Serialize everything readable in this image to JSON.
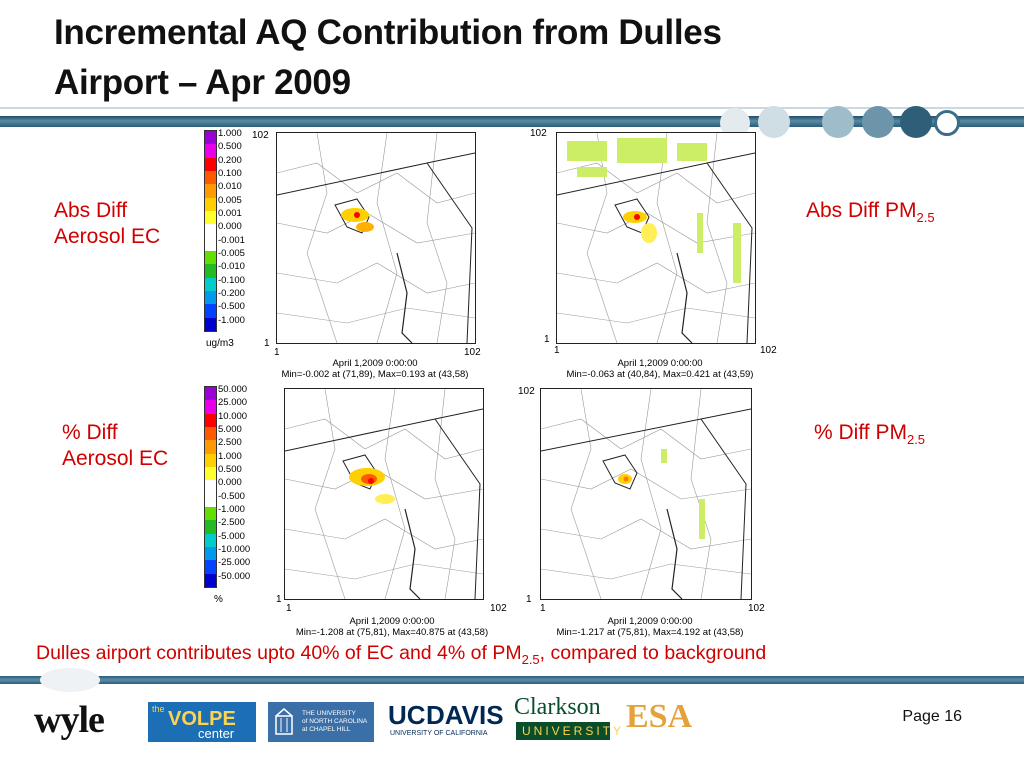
{
  "slide": {
    "title_line1": "Incremental AQ Contribution from Dulles",
    "title_line2": "Airport – Apr 2009",
    "labels": {
      "abs_ec_line1": "Abs Diff",
      "abs_ec_line2": "Aerosol EC",
      "abs_pm": "Abs Diff PM",
      "abs_pm_sub": "2.5",
      "pct_ec_line1": "% Diff",
      "pct_ec_line2": "Aerosol EC",
      "pct_pm": "% Diff PM",
      "pct_pm_sub": "2.5"
    },
    "conclusion_prefix": "Dulles airport contributes upto 40% of EC and 4% of PM",
    "conclusion_sub": "2.5",
    "conclusion_suffix": ", compared to background",
    "page": "Page 16"
  },
  "maps": {
    "tick_102": "102",
    "tick_1": "1",
    "top_left_caption1": "April 1,2009 0:00:00",
    "top_left_caption2": "Min=-0.002 at (71,89), Max=0.193 at (43,58)",
    "top_right_caption1": "April 1,2009 0:00:00",
    "top_right_caption2": "Min=-0.063 at (40,84), Max=0.421 at (43,59)",
    "bottom_left_caption1": "April 1,2009 0:00:00",
    "bottom_left_caption2": "Min=-1.208 at (75,81), Max=40.875 at (43,58)",
    "bottom_right_caption1": "April 1,2009 0:00:00",
    "bottom_right_caption2": "Min=-1.217 at (75,81), Max=4.192 at (43,58)"
  },
  "colorbar_abs": {
    "values": [
      "1.000",
      "0.500",
      "0.200",
      "0.100",
      "0.010",
      "0.005",
      "0.001",
      "0.000",
      "-0.001",
      "-0.005",
      "-0.010",
      "-0.100",
      "-0.200",
      "-0.500",
      "-1.000"
    ],
    "unit": "ug/m3"
  },
  "colorbar_pct": {
    "values": [
      "50.000",
      "25.000",
      "10.000",
      "5.000",
      "2.500",
      "1.000",
      "0.500",
      "0.000",
      "-0.500",
      "-1.000",
      "-2.500",
      "-5.000",
      "-10.000",
      "-25.000",
      "-50.000"
    ],
    "unit": "%"
  },
  "colorbar_colors": [
    "#9b00d9",
    "#e800e8",
    "#ff0000",
    "#ff5a00",
    "#ff9a00",
    "#ffd000",
    "#ffff30",
    "#ffffff",
    "#ffffff",
    "#66dd00",
    "#22bb22",
    "#00cccc",
    "#0099ee",
    "#0044ff",
    "#0000cc"
  ],
  "logos": {
    "wyle": "wyle",
    "volpe_the": "the",
    "volpe": "VOLPE",
    "volpe_center": "center",
    "unc_line1": "THE UNIVERSITY",
    "unc_line2": "of NORTH CAROLINA",
    "unc_line3": "at CHAPEL HILL",
    "ucdavis_uc": "UC",
    "ucdavis_davis": "DAVIS",
    "ucdavis_sub": "UNIVERSITY OF CALIFORNIA",
    "clarkson": "Clarkson",
    "clarkson_sub": "UNIVERSITY",
    "esa": "ESA"
  }
}
